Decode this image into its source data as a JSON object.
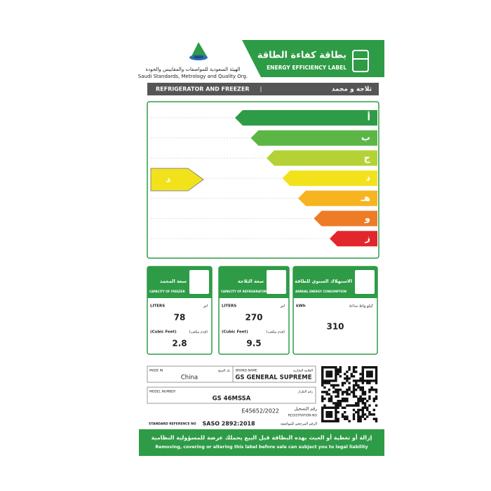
{
  "header": {
    "org_arabic": "الهيئة السعودية للمواصفات والمقاييس والجودة",
    "org_english": "Saudi Standards, Metrology and Quality Org.",
    "logo_text": "SASO",
    "title_arabic": "بطاقة كفاءة الطاقة",
    "title_english": "ENERGY EFFICIENCY LABEL"
  },
  "category": {
    "english": "REFRIGERATOR AND FREEZER",
    "separator": "|",
    "arabic": "ثلاجة و مجمد"
  },
  "scale": {
    "grades": [
      {
        "label": "أ",
        "color": "#2e9b46"
      },
      {
        "label": "ب",
        "color": "#5cb646"
      },
      {
        "label": "ج",
        "color": "#b4d235"
      },
      {
        "label": "د",
        "color": "#f2e21c"
      },
      {
        "label": "هـ",
        "color": "#f7b421"
      },
      {
        "label": "و",
        "color": "#ee7b25"
      },
      {
        "label": "ز",
        "color": "#e3252c"
      }
    ],
    "rating": "د",
    "rating_color": "#f2e21c"
  },
  "boxes": [
    {
      "title_arabic": "سعة المجمد",
      "title_english": "CAPACITY OF FREEZER",
      "unit_english": "LITERS",
      "unit_arabic": "لتر",
      "value": "78",
      "unit2_english": "(Cubic Feet)",
      "unit2_arabic": "(قدم مكعب)",
      "value2": "2.8"
    },
    {
      "title_arabic": "سعة الثلاجة",
      "title_english": "CAPACITY OF REFRIGERATOR",
      "unit_english": "LITERS",
      "unit_arabic": "لتر",
      "value": "270",
      "unit2_english": "(Cubic Feet)",
      "unit2_arabic": "(قدم مكعب)",
      "value2": "9.5"
    },
    {
      "title_arabic": "الاستهلاك السنوي للطاقة",
      "title_english": "ANNUAL ENERGY CONSUMPTION",
      "unit_english": "kWh",
      "unit_arabic": "كيلو واط ساعة",
      "value": "310"
    }
  ],
  "info": {
    "made_in_label": "MADE IN",
    "made_in_arabic": "بلد الصنع",
    "made_in": "China",
    "brand_label": "BRAND NAME",
    "brand_arabic": "العلامة التجارية",
    "brand": "GS GENERAL SUPREME",
    "model_label": "MODEL NUMBER",
    "model_arabic": "رقم الطراز",
    "model": "GS 46MSSA",
    "registration": "E45652/2022",
    "registration_arabic": "رقم التسجيل",
    "registration_label": "REGISTRATION NO",
    "standard_label": "STANDARD REFERENCE NO",
    "standard": "SASO 2892:2018",
    "standard_arabic": "الرقم المرجعي للمواصفة"
  },
  "footer": {
    "arabic": "إزالة أو تغطية أو العبث بهذه البطاقة قبل البيع يحملك عرضة للمسؤولية النظامية",
    "english": "Removing, covering or altering this label before sale can subject you to legal liability"
  }
}
